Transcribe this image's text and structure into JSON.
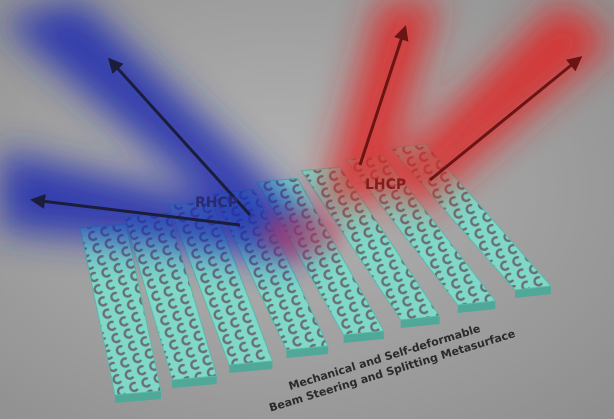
{
  "labels": {
    "rhcp": "RHCP",
    "lhcp": "LHCP"
  },
  "caption": {
    "line1": "Mechanical and Self-deformable",
    "line2": "Beam Steering and Splitting Metasurface"
  }
}
